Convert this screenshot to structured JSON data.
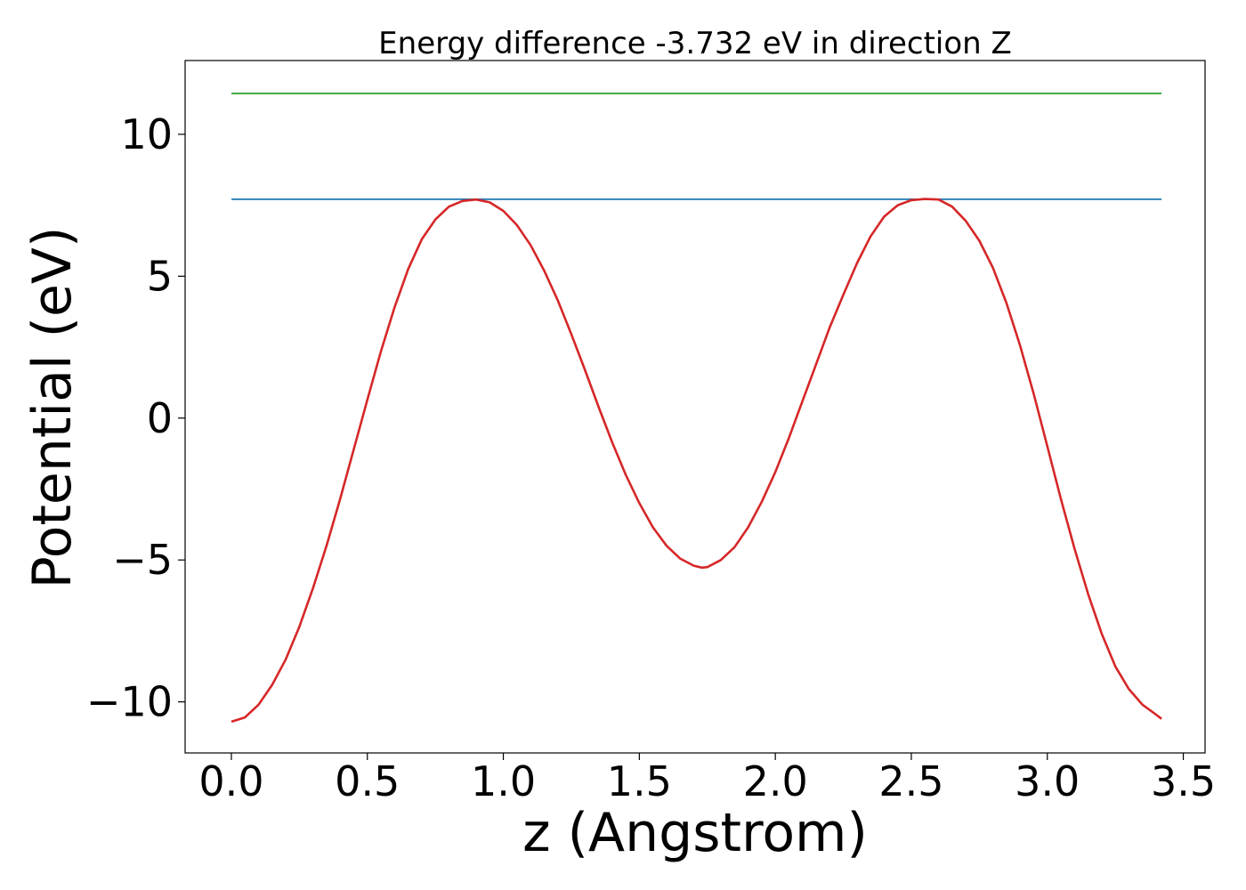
{
  "chart_data": {
    "type": "line",
    "title": "Energy difference -3.732 eV in direction Z",
    "xlabel": "z (Angstrom)",
    "ylabel": "Potential (eV)",
    "xlim": [
      -0.17,
      3.58
    ],
    "ylim": [
      -11.8,
      12.6
    ],
    "grid": false,
    "x_ticks": [
      {
        "value": 0.0,
        "label": "0.0"
      },
      {
        "value": 0.5,
        "label": "0.5"
      },
      {
        "value": 1.0,
        "label": "1.0"
      },
      {
        "value": 1.5,
        "label": "1.5"
      },
      {
        "value": 2.0,
        "label": "2.0"
      },
      {
        "value": 2.5,
        "label": "2.5"
      },
      {
        "value": 3.0,
        "label": "3.0"
      },
      {
        "value": 3.5,
        "label": "3.5"
      }
    ],
    "y_ticks": [
      {
        "value": 10,
        "label": "10"
      },
      {
        "value": 5,
        "label": "5"
      },
      {
        "value": 0,
        "label": "0"
      },
      {
        "value": -5,
        "label": "−5"
      },
      {
        "value": -10,
        "label": "−10"
      }
    ],
    "series": [
      {
        "color": "#2ca02c",
        "x": [
          0.0,
          3.42
        ],
        "y": [
          11.44,
          11.44
        ]
      },
      {
        "color": "#1f77b4",
        "x": [
          0.0,
          3.42
        ],
        "y": [
          7.71,
          7.71
        ]
      },
      {
        "color": "#d62728",
        "x": [
          0.0,
          0.05,
          0.1,
          0.15,
          0.2,
          0.25,
          0.3,
          0.35,
          0.4,
          0.45,
          0.5,
          0.55,
          0.6,
          0.65,
          0.7,
          0.75,
          0.8,
          0.85,
          0.9,
          0.95,
          1.0,
          1.05,
          1.1,
          1.15,
          1.2,
          1.25,
          1.3,
          1.35,
          1.4,
          1.45,
          1.5,
          1.55,
          1.6,
          1.65,
          1.7,
          1.73,
          1.75,
          1.8,
          1.85,
          1.9,
          1.95,
          2.0,
          2.05,
          2.1,
          2.15,
          2.2,
          2.25,
          2.3,
          2.35,
          2.4,
          2.45,
          2.5,
          2.55,
          2.6,
          2.65,
          2.7,
          2.75,
          2.8,
          2.85,
          2.9,
          2.95,
          3.0,
          3.05,
          3.1,
          3.15,
          3.2,
          3.25,
          3.3,
          3.35,
          3.4,
          3.42
        ],
        "y": [
          -10.7,
          -10.55,
          -10.1,
          -9.4,
          -8.5,
          -7.35,
          -6.0,
          -4.5,
          -2.85,
          -1.1,
          0.65,
          2.35,
          3.9,
          5.25,
          6.3,
          7.0,
          7.45,
          7.65,
          7.7,
          7.6,
          7.3,
          6.8,
          6.1,
          5.2,
          4.15,
          2.95,
          1.7,
          0.4,
          -0.85,
          -2.0,
          -3.0,
          -3.85,
          -4.5,
          -4.95,
          -5.2,
          -5.27,
          -5.25,
          -5.0,
          -4.55,
          -3.85,
          -2.95,
          -1.9,
          -0.7,
          0.6,
          1.9,
          3.2,
          4.35,
          5.45,
          6.4,
          7.1,
          7.5,
          7.68,
          7.72,
          7.7,
          7.45,
          6.95,
          6.25,
          5.3,
          4.05,
          2.55,
          0.85,
          -1.0,
          -2.85,
          -4.6,
          -6.2,
          -7.6,
          -8.75,
          -9.55,
          -10.1,
          -10.45,
          -10.6
        ]
      }
    ]
  }
}
